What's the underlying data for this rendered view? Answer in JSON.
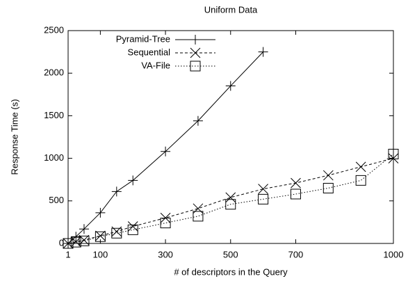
{
  "chart_data": {
    "type": "line",
    "title": "Uniform Data",
    "xlabel": "# of descriptors in the Query",
    "ylabel": "Response Time (s)",
    "xlim": [
      1,
      1000
    ],
    "xticks": [
      1,
      100,
      300,
      500,
      700,
      1000
    ],
    "ylim": [
      0,
      2500
    ],
    "yticks": [
      0,
      500,
      1000,
      1500,
      2000,
      2500
    ],
    "legend": "upper left",
    "series": [
      {
        "name": "Pyramid-Tree",
        "color": "#000000",
        "marker": "plus",
        "line_style": "solid",
        "x": [
          1,
          25,
          50,
          100,
          150,
          200,
          300,
          400,
          500,
          600
        ],
        "values": [
          0,
          80,
          170,
          360,
          610,
          740,
          1080,
          1440,
          1850,
          2250
        ]
      },
      {
        "name": "Sequential",
        "color": "#000000",
        "marker": "cross",
        "line_style": "dashed",
        "x": [
          1,
          25,
          50,
          100,
          150,
          200,
          300,
          400,
          500,
          600,
          700,
          800,
          900,
          1000
        ],
        "values": [
          0,
          20,
          40,
          90,
          140,
          200,
          300,
          410,
          540,
          640,
          710,
          800,
          900,
          1000
        ]
      },
      {
        "name": "VA-File",
        "color": "#000000",
        "marker": "square",
        "line_style": "dotted",
        "x": [
          1,
          25,
          50,
          100,
          150,
          200,
          300,
          400,
          500,
          600,
          700,
          800,
          900,
          1000
        ],
        "values": [
          0,
          15,
          30,
          80,
          120,
          160,
          240,
          320,
          460,
          520,
          580,
          650,
          740,
          1050
        ]
      }
    ]
  }
}
